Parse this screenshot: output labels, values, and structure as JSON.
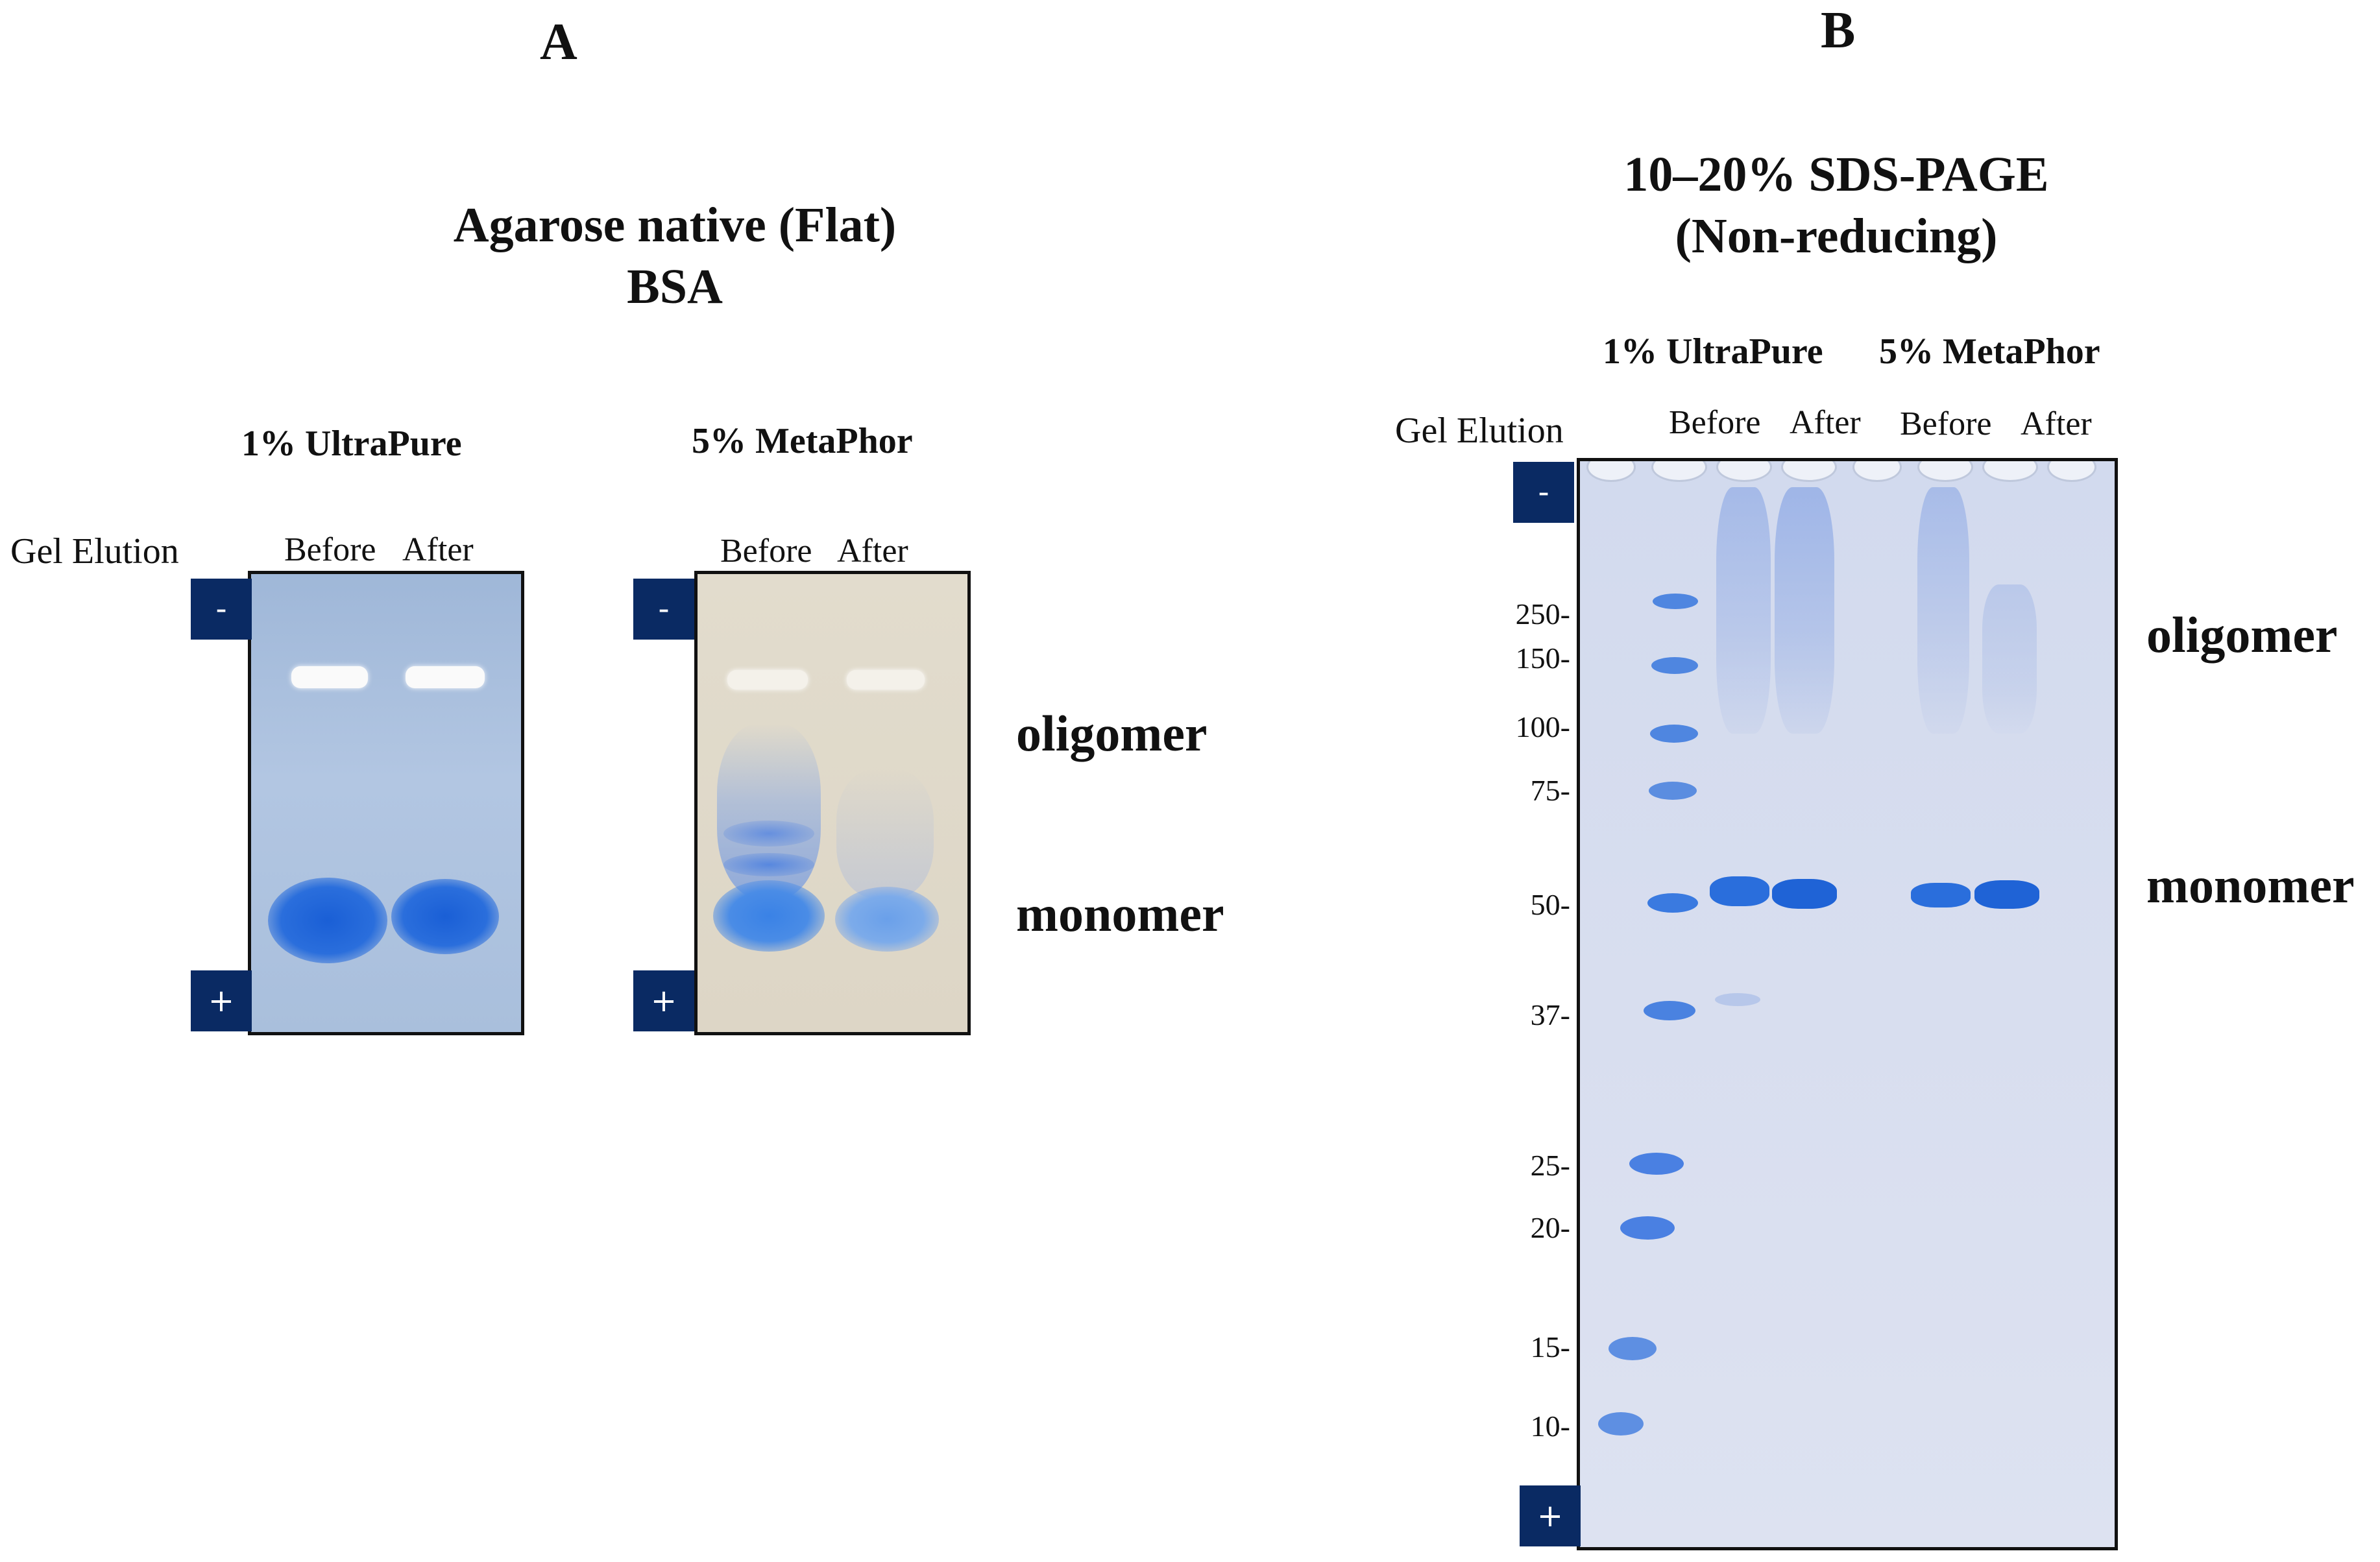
{
  "panel_a": {
    "letter": "A",
    "title_line1": "Agarose native (Flat)",
    "title_line2": "BSA",
    "row_label": "Gel Elution",
    "gels": [
      {
        "name": "1% UltraPure",
        "lane1": "Before",
        "lane2": "After",
        "top_electrode": "-",
        "bottom_electrode": "+"
      },
      {
        "name": "5% MetaPhor",
        "lane1": "Before",
        "lane2": "After",
        "top_electrode": "-",
        "bottom_electrode": "+"
      }
    ],
    "band_labels": {
      "oligomer": "oligomer",
      "monomer": "monomer"
    }
  },
  "panel_b": {
    "letter": "B",
    "title_line1": "10–20% SDS-PAGE",
    "title_line2": "(Non-reducing)",
    "row_label": "Gel Elution",
    "groups": [
      {
        "name": "1% UltraPure",
        "lane1": "Before",
        "lane2": "After"
      },
      {
        "name": "5% MetaPhor",
        "lane1": "Before",
        "lane2": "After"
      }
    ],
    "top_electrode": "-",
    "bottom_electrode": "+",
    "mw_markers": [
      "250-",
      "150-",
      "100-",
      "75-",
      "50-",
      "37-",
      "25-",
      "20-",
      "15-",
      "10-"
    ],
    "band_labels": {
      "oligomer": "oligomer",
      "monomer": "monomer"
    }
  },
  "colors": {
    "ultrapure_gel_bg": "#a9bfdc",
    "metaphor_gel_bg": "#ddd6c6",
    "sds_gel_bg": "#d8deef",
    "band_blue": "#1f63d6",
    "electrode": "#0a2a63"
  }
}
